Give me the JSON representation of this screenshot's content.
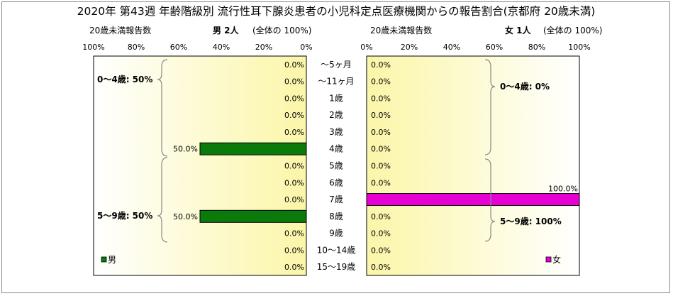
{
  "title": "2020年 第43週 年齢階級別 流行性耳下腺炎患者の小児科定点医療機関からの報告割合(京都府 20歳未満)",
  "left_panel": {
    "subtitle_left": "20歳未満報告数",
    "subtitle_main": "男 2人",
    "subtitle_share": "(全体の 100%)",
    "legend": "男",
    "color": "#0a7a0a",
    "group_labels": [
      "0～4歳: 50%",
      "5～9歳: 50%"
    ]
  },
  "right_panel": {
    "subtitle_left": "20歳未満報告数",
    "subtitle_main": "女 1人",
    "subtitle_share": "(全体の 100%)",
    "legend": "女",
    "color": "#e600d4",
    "group_labels": [
      "0～4歳: 0%",
      "5～9歳: 100%"
    ]
  },
  "chart_data": {
    "type": "bar",
    "title": "2020年 第43週 年齢階級別 流行性耳下腺炎患者の小児科定点医療機関からの報告割合(京都府 20歳未満)",
    "categories": [
      "～5ヶ月",
      "～11ヶ月",
      "1歳",
      "2歳",
      "3歳",
      "4歳",
      "5歳",
      "6歳",
      "7歳",
      "8歳",
      "9歳",
      "10～14歳",
      "15～19歳"
    ],
    "xlim": [
      0,
      100
    ],
    "x_ticks": [
      "0%",
      "20%",
      "40%",
      "60%",
      "80%",
      "100%"
    ],
    "series": [
      {
        "name": "男",
        "values": [
          0,
          0,
          0,
          0,
          0,
          50,
          0,
          0,
          0,
          50,
          0,
          0,
          0
        ],
        "labels": [
          "0.0%",
          "0.0%",
          "0.0%",
          "0.0%",
          "0.0%",
          "50.0%",
          "0.0%",
          "0.0%",
          "0.0%",
          "50.0%",
          "0.0%",
          "0.0%",
          "0.0%"
        ]
      },
      {
        "name": "女",
        "values": [
          0,
          0,
          0,
          0,
          0,
          0,
          0,
          0,
          100,
          0,
          0,
          0,
          0
        ],
        "labels": [
          "0.0%",
          "0.0%",
          "0.0%",
          "0.0%",
          "0.0%",
          "0.0%",
          "0.0%",
          "0.0%",
          "100.0%",
          "0.0%",
          "0.0%",
          "0.0%",
          "0.0%"
        ]
      }
    ]
  }
}
